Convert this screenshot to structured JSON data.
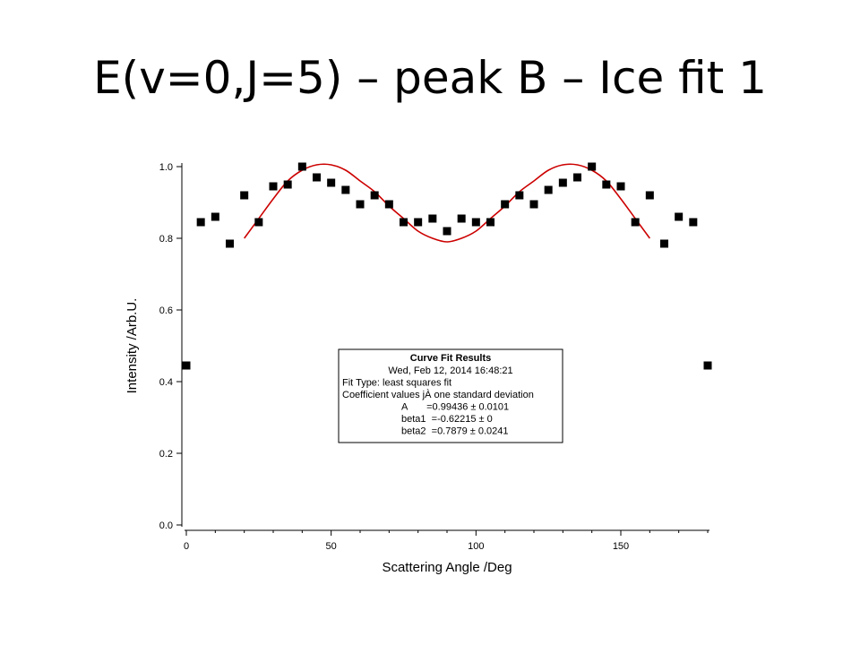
{
  "slide": {
    "title": "E(v=0,J=5) – peak B – Ice fit 1"
  },
  "chart_data": {
    "type": "scatter",
    "xlabel": "Scattering Angle /Deg",
    "ylabel": "Intensity /Arb.U.",
    "xlim": [
      0,
      180
    ],
    "ylim": [
      0,
      1.0
    ],
    "x_ticks": [
      0,
      50,
      100,
      150
    ],
    "y_ticks": [
      0.0,
      0.2,
      0.4,
      0.6,
      0.8,
      1.0
    ],
    "x_tick_labels": [
      "0",
      "50",
      "100",
      "150"
    ],
    "y_tick_labels": [
      "0.0",
      "0.2",
      "0.4",
      "0.6",
      "0.8",
      "1.0"
    ],
    "grid": false,
    "series": [
      {
        "kind": "points",
        "color": "#000000",
        "x": [
          0,
          5,
          10,
          15,
          20,
          25,
          30,
          35,
          40,
          45,
          50,
          55,
          60,
          65,
          70,
          75,
          80,
          85,
          90,
          95,
          100,
          105,
          110,
          115,
          120,
          125,
          130,
          135,
          140,
          145,
          150,
          155,
          160,
          165,
          170,
          175,
          180
        ],
        "y": [
          0.445,
          0.845,
          0.86,
          0.785,
          0.92,
          0.845,
          0.945,
          0.95,
          1.0,
          0.97,
          0.955,
          0.935,
          0.895,
          0.92,
          0.895,
          0.845,
          0.845,
          0.855,
          0.82,
          0.855,
          0.845,
          0.845,
          0.895,
          0.92,
          0.895,
          0.935,
          0.955,
          0.97,
          1.0,
          0.95,
          0.945,
          0.845,
          0.92,
          0.785,
          0.86,
          0.845,
          0.445
        ]
      },
      {
        "kind": "fit_curve",
        "color": "#cc0000",
        "x": [
          20,
          25,
          30,
          35,
          40,
          45,
          50,
          55,
          60,
          65,
          70,
          75,
          80,
          85,
          90,
          95,
          100,
          105,
          110,
          115,
          120,
          125,
          130,
          135,
          140,
          145,
          150,
          155,
          160
        ],
        "y": [
          0.8,
          0.855,
          0.91,
          0.96,
          0.99,
          1.005,
          1.005,
          0.99,
          0.96,
          0.93,
          0.89,
          0.855,
          0.82,
          0.8,
          0.79,
          0.8,
          0.82,
          0.855,
          0.89,
          0.93,
          0.96,
          0.99,
          1.005,
          1.005,
          0.99,
          0.96,
          0.91,
          0.855,
          0.8
        ]
      }
    ],
    "fit_results": {
      "title": "Curve Fit Results",
      "lines": [
        "Wed, Feb 12, 2014 16:48:21",
        "Fit Type: least squares fit",
        "Coefficient values jÀ one standard deviation",
        "A       =0.99436 ± 0.0101",
        "beta1  =-0.62215 ± 0",
        "beta2  =0.7879 ± 0.0241"
      ]
    }
  }
}
